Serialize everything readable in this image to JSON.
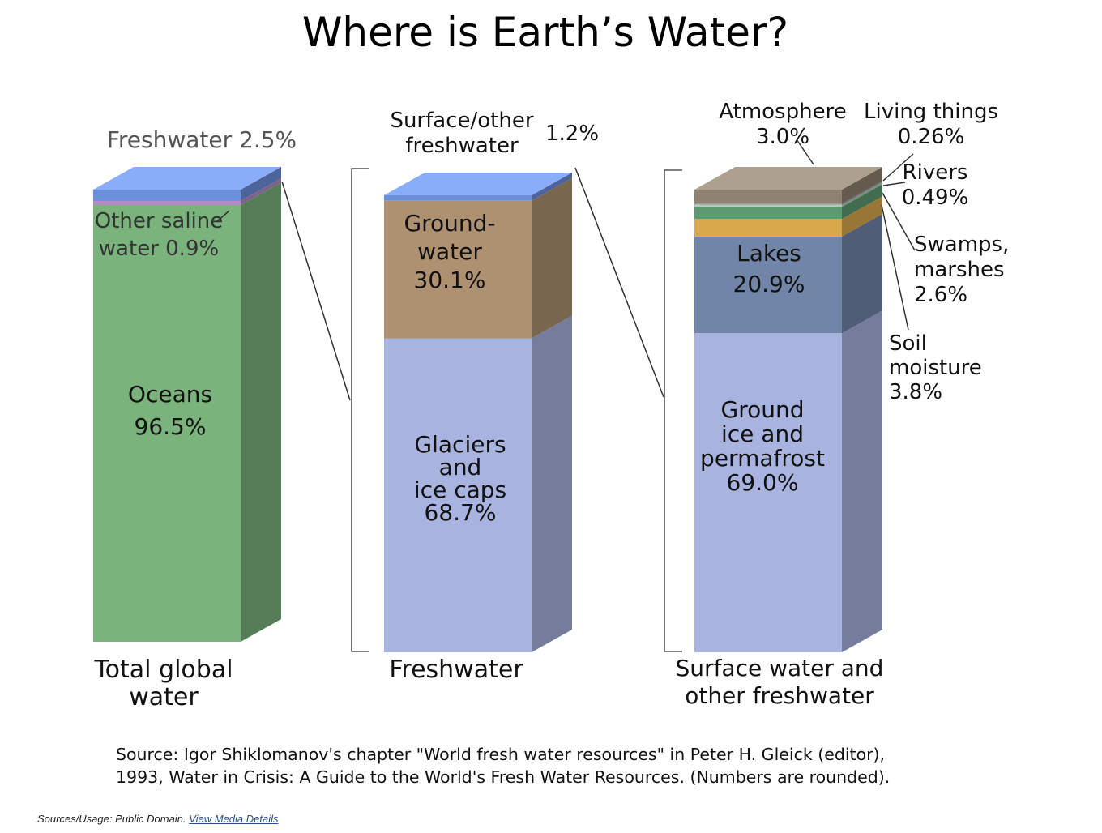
{
  "chart_data": {
    "type": "bar",
    "title": "Where is Earth’s Water?",
    "stacking": "stacked-percent",
    "bars": [
      {
        "label": [
          "Total global",
          "water"
        ],
        "segments": [
          {
            "name": "Oceans",
            "value": 96.5,
            "color": "#7ab37c",
            "label_lines": [
              "Oceans",
              "96.5%"
            ]
          },
          {
            "name": "Other saline water",
            "value": 0.9,
            "color": "#b58ac7",
            "label_lines": [
              "Other saline",
              "water 0.9%"
            ]
          },
          {
            "name": "Freshwater",
            "value": 2.5,
            "color": "#6c8fdc",
            "label_lines": [
              "Freshwater 2.5%"
            ]
          }
        ]
      },
      {
        "label": [
          "Freshwater"
        ],
        "segments": [
          {
            "name": "Glaciers and ice caps",
            "value": 68.7,
            "color": "#a8b3df",
            "label_lines": [
              "Glaciers",
              "and",
              "ice caps",
              "68.7%"
            ]
          },
          {
            "name": "Groundwater",
            "value": 30.1,
            "color": "#ad9170",
            "label_lines": [
              "Ground-",
              "water",
              "30.1%"
            ]
          },
          {
            "name": "Surface/other freshwater",
            "value": 1.2,
            "color": "#6c8fdc",
            "label_lines": [
              "Surface/other",
              "freshwater",
              "1.2%"
            ]
          }
        ]
      },
      {
        "label": [
          "Surface water and",
          "other freshwater"
        ],
        "segments": [
          {
            "name": "Ground ice and permafrost",
            "value": 69.0,
            "color": "#a8b3df",
            "label_lines": [
              "Ground",
              "ice and",
              "permafrost",
              "69.0%"
            ]
          },
          {
            "name": "Lakes",
            "value": 20.9,
            "color": "#7185a8",
            "label_lines": [
              "Lakes",
              "20.9%"
            ]
          },
          {
            "name": "Soil moisture",
            "value": 3.8,
            "color": "#d9a84c",
            "label_lines": [
              "Soil",
              "moisture",
              "3.8%"
            ]
          },
          {
            "name": "Swamps, marshes",
            "value": 2.6,
            "color": "#5c9a72",
            "label_lines": [
              "Swamps,",
              "marshes",
              "2.6%"
            ]
          },
          {
            "name": "Rivers",
            "value": 0.49,
            "color": "#b7c9b4",
            "label_lines": [
              "Rivers",
              "0.49%"
            ]
          },
          {
            "name": "Living things",
            "value": 0.26,
            "color": "#8a9aa0",
            "label_lines": [
              "Living things",
              "0.26%"
            ]
          },
          {
            "name": "Atmosphere",
            "value": 3.0,
            "color": "#8f8270",
            "label_lines": [
              "Atmosphere",
              "3.0%"
            ]
          }
        ]
      }
    ],
    "source": [
      "Source: Igor Shiklomanov's chapter \"World fresh water resources\" in Peter H. Gleick (editor),",
      "1993, Water in Crisis: A Guide to the World's Fresh Water Resources. (Numbers are rounded)."
    ]
  },
  "usage": {
    "prefix": "Sources/Usage: Public Domain.",
    "link_label": "View Media Details"
  }
}
